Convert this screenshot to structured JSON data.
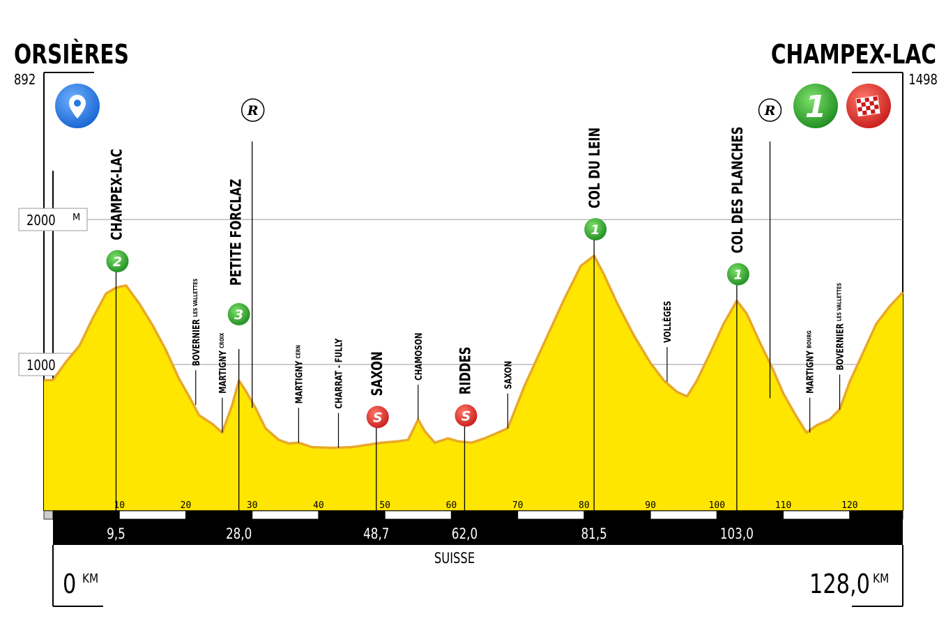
{
  "chart_data": {
    "type": "area",
    "start": {
      "name": "ORSIÈRES",
      "altitude": "892",
      "km_label": "0",
      "km_unit": "KM"
    },
    "finish": {
      "name": "CHAMPEX-LAC",
      "altitude": "1498",
      "km_label": "128,0",
      "km_unit": "KM"
    },
    "country": "SUISSE",
    "xlim": [
      0,
      128
    ],
    "ylim": [
      0,
      2250
    ],
    "grid": [
      {
        "value": 1000,
        "label": "1000",
        "unit": "M"
      },
      {
        "value": 2000,
        "label": "2000",
        "unit": "M"
      }
    ],
    "x_ticks": [
      "10",
      "20",
      "30",
      "40",
      "50",
      "60",
      "70",
      "80",
      "90",
      "100",
      "110",
      "120"
    ],
    "profile": [
      [
        0,
        892
      ],
      [
        2,
        1020
      ],
      [
        4,
        1130
      ],
      [
        6,
        1320
      ],
      [
        8,
        1490
      ],
      [
        9.5,
        1530
      ],
      [
        11,
        1545
      ],
      [
        13,
        1420
      ],
      [
        15,
        1270
      ],
      [
        17,
        1100
      ],
      [
        19,
        900
      ],
      [
        20.5,
        780
      ],
      [
        22,
        650
      ],
      [
        24,
        590
      ],
      [
        25.5,
        530
      ],
      [
        27,
        720
      ],
      [
        28,
        890
      ],
      [
        29,
        820
      ],
      [
        30.5,
        700
      ],
      [
        32,
        560
      ],
      [
        34,
        480
      ],
      [
        35.5,
        455
      ],
      [
        37,
        460
      ],
      [
        39,
        430
      ],
      [
        42,
        425
      ],
      [
        45,
        430
      ],
      [
        48,
        450
      ],
      [
        49.5,
        460
      ],
      [
        52,
        470
      ],
      [
        53.5,
        480
      ],
      [
        55,
        620
      ],
      [
        56,
        540
      ],
      [
        57.5,
        460
      ],
      [
        59.5,
        490
      ],
      [
        61,
        470
      ],
      [
        63,
        460
      ],
      [
        65,
        490
      ],
      [
        67,
        530
      ],
      [
        68.5,
        560
      ],
      [
        71,
        850
      ],
      [
        74,
        1150
      ],
      [
        77,
        1450
      ],
      [
        79.5,
        1680
      ],
      [
        81.5,
        1750
      ],
      [
        83,
        1620
      ],
      [
        85,
        1420
      ],
      [
        87.5,
        1200
      ],
      [
        90,
        1010
      ],
      [
        92,
        890
      ],
      [
        94,
        810
      ],
      [
        95.5,
        780
      ],
      [
        97,
        890
      ],
      [
        99,
        1080
      ],
      [
        101,
        1280
      ],
      [
        103,
        1440
      ],
      [
        104.5,
        1350
      ],
      [
        106.5,
        1150
      ],
      [
        108.5,
        960
      ],
      [
        110,
        800
      ],
      [
        112,
        640
      ],
      [
        113.5,
        530
      ],
      [
        115,
        580
      ],
      [
        117,
        620
      ],
      [
        118.5,
        690
      ],
      [
        120,
        880
      ],
      [
        122,
        1080
      ],
      [
        124,
        1280
      ],
      [
        126,
        1400
      ],
      [
        128,
        1498
      ]
    ],
    "waypoints": [
      {
        "km": 9.5,
        "altitude": 1530,
        "label": "CHAMPEX-LAC",
        "style": "major",
        "badge": "climb",
        "category": "2",
        "km_mark": "9,5"
      },
      {
        "km": 21.5,
        "altitude": 720,
        "label": "BOVERNIER",
        "sub": "LES VALLETTES",
        "style": "minor"
      },
      {
        "km": 25.5,
        "altitude": 530,
        "label": "MARTIGNY",
        "sub": "CROIX",
        "style": "minor"
      },
      {
        "km": 28.0,
        "altitude": 890,
        "label": "",
        "style": "none",
        "badge": "climb",
        "category": "3",
        "km_mark": "28,0"
      },
      {
        "km": 30.0,
        "altitude": 700,
        "label": "PETITE FORCLAZ",
        "style": "major",
        "badge": "refuel"
      },
      {
        "km": 37.0,
        "altitude": 460,
        "label": "MARTIGNY",
        "sub": "CERN",
        "style": "minor"
      },
      {
        "km": 43.0,
        "altitude": 425,
        "label": "CHARRAT - FULLY",
        "style": "minor"
      },
      {
        "km": 48.7,
        "altitude": 455,
        "label": "SAXON",
        "style": "major",
        "badge": "sprint",
        "category": "S",
        "km_mark": "48,7"
      },
      {
        "km": 55.0,
        "altitude": 620,
        "label": "CHAMOSON",
        "style": "minor"
      },
      {
        "km": 62.0,
        "altitude": 465,
        "label": "RIDDES",
        "style": "major",
        "badge": "sprint",
        "category": "S",
        "km_mark": "62,0"
      },
      {
        "km": 68.5,
        "altitude": 560,
        "label": "SAXON",
        "style": "minor"
      },
      {
        "km": 81.5,
        "altitude": 1750,
        "label": "COL DU LEIN",
        "style": "major",
        "badge": "climb",
        "category": "1",
        "km_mark": "81,5"
      },
      {
        "km": 92.5,
        "altitude": 880,
        "label": "VOLLÈGES",
        "style": "minor"
      },
      {
        "km": 103.0,
        "altitude": 1440,
        "label": "COL DES PLANCHES",
        "style": "major",
        "badge": "climb",
        "category": "1",
        "km_mark": "103,0"
      },
      {
        "km": 108.0,
        "altitude": 960,
        "label": "",
        "style": "none",
        "badge": "refuel"
      },
      {
        "km": 114.0,
        "altitude": 530,
        "label": "MARTIGNY",
        "sub": "BOURG",
        "style": "minor"
      },
      {
        "km": 118.5,
        "altitude": 690,
        "label": "BOVERNIER",
        "sub": "LES VALLETTES",
        "style": "minor"
      }
    ],
    "finish_badges": [
      {
        "type": "climb",
        "category": "1"
      },
      {
        "type": "finish-flag"
      }
    ],
    "start_badge": {
      "type": "location-pin"
    },
    "colors": {
      "fill": "#ffe600",
      "outline": "#e8a82a",
      "climb_badge": "#2aa12a",
      "sprint_badge": "#e22a2a",
      "start_badge": "#2478e0"
    }
  }
}
